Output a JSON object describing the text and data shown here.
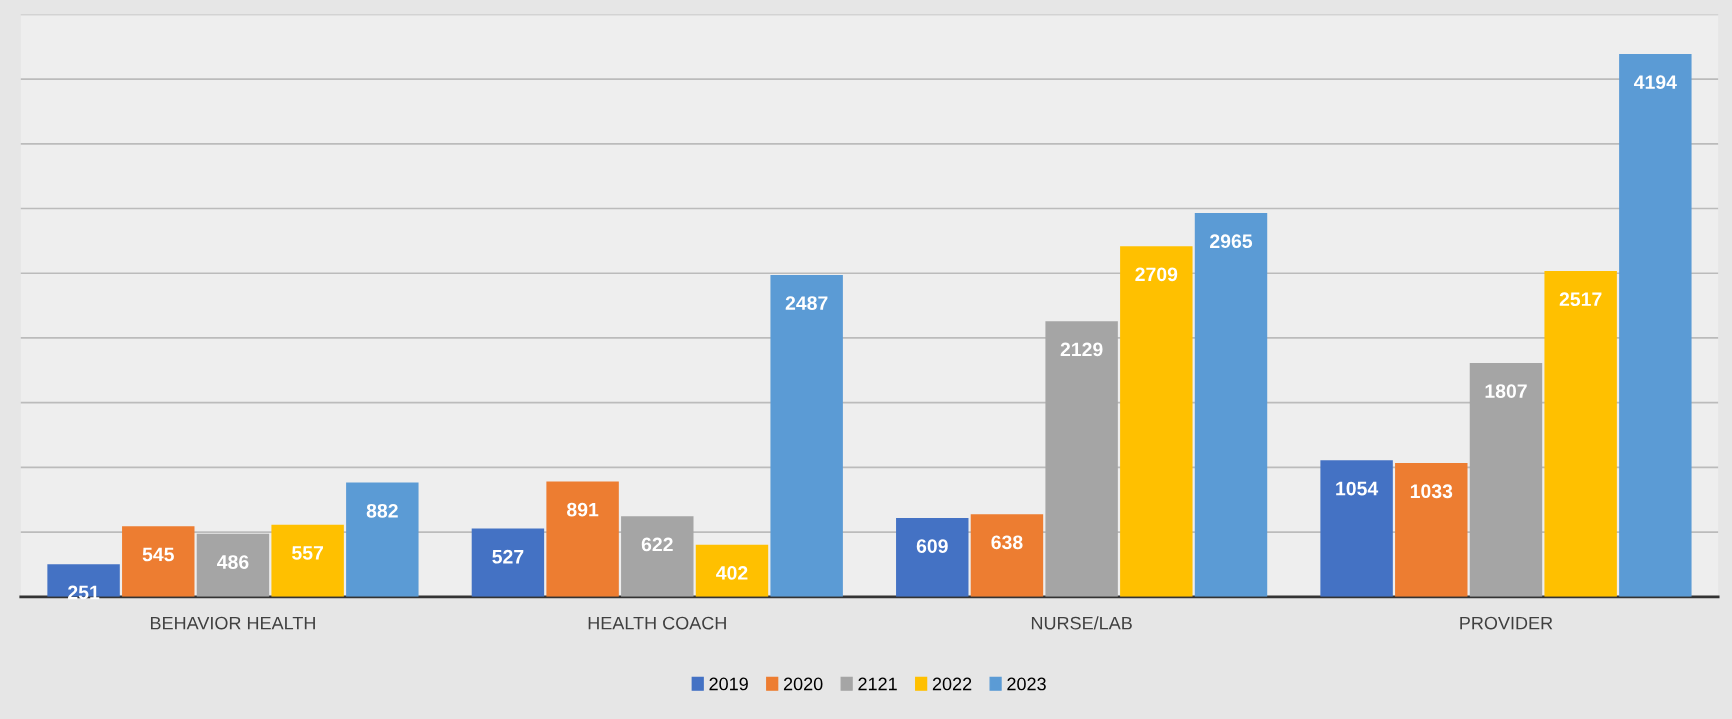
{
  "chart_data": {
    "type": "bar",
    "categories": [
      "BEHAVIOR HEALTH",
      "HEALTH COACH",
      "NURSE/LAB",
      "PROVIDER"
    ],
    "series": [
      {
        "name": "2019",
        "color": "#4472c4",
        "values": [
          251,
          527,
          609,
          1054
        ]
      },
      {
        "name": "2020",
        "color": "#ed7d31",
        "values": [
          545,
          891,
          638,
          1033
        ]
      },
      {
        "name": "2121",
        "color": "#a5a5a5",
        "values": [
          486,
          622,
          2129,
          1807
        ]
      },
      {
        "name": "2022",
        "color": "#ffc000",
        "values": [
          557,
          402,
          2709,
          2517
        ]
      },
      {
        "name": "2023",
        "color": "#5b9bd5",
        "values": [
          882,
          2487,
          2965,
          4194
        ]
      }
    ],
    "ylim": [
      0,
      4500
    ],
    "yticks": [
      {
        "value": 0,
        "label": null
      },
      {
        "value": 500,
        "label": null
      },
      {
        "value": 1000,
        "label": null
      },
      {
        "value": 1500,
        "label": null
      },
      {
        "value": 2000,
        "label": null
      },
      {
        "value": 2500,
        "label": null
      },
      {
        "value": 3000,
        "label": null
      },
      {
        "value": 3500,
        "label": null
      },
      {
        "value": 4000,
        "label": null
      },
      {
        "value": 4500,
        "label": null
      }
    ],
    "tick_labels": "x",
    "grid": "y",
    "legend": "bottom",
    "data_labels": true
  }
}
